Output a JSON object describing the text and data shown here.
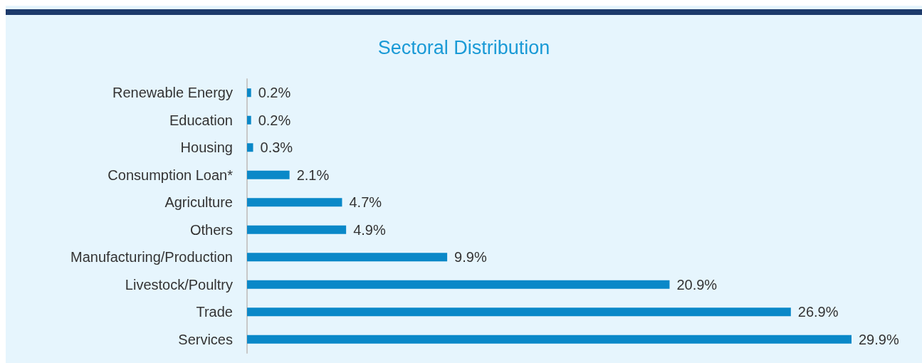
{
  "chart_data": {
    "type": "bar",
    "orientation": "horizontal",
    "title": "Sectoral Distribution",
    "categories": [
      "Renewable Energy",
      "Education",
      "Housing",
      "Consumption Loan*",
      "Agriculture",
      "Others",
      "Manufacturing/Production",
      "Livestock/Poultry",
      "Trade",
      "Services"
    ],
    "values": [
      0.2,
      0.2,
      0.3,
      2.1,
      4.7,
      4.9,
      9.9,
      20.9,
      26.9,
      29.9
    ],
    "value_labels": [
      "0.2%",
      "0.2%",
      "0.3%",
      "2.1%",
      "4.7%",
      "4.9%",
      "9.9%",
      "20.9%",
      "26.9%",
      "29.9%"
    ],
    "color": "#0a88c8",
    "grid": false
  }
}
